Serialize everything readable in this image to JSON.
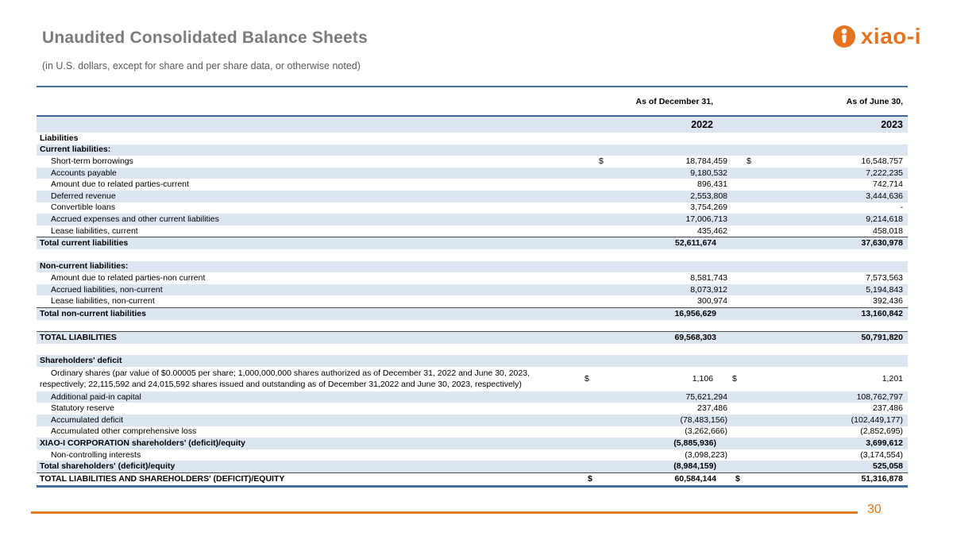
{
  "header": {
    "title": "Unaudited Consolidated Balance Sheets",
    "subtitle": "(in U.S. dollars, except for share and per share data, or otherwise noted)"
  },
  "logo": {
    "brand": "xiao-i",
    "icon": "person-i-icon"
  },
  "colors": {
    "brand_orange": "#E6731E",
    "band_blue": "#DCE6F1",
    "rule_blue": "#44709D",
    "title_gray": "#7B7B7B"
  },
  "table": {
    "col_headers": {
      "col1": "As of December 31,",
      "col2": "As of June 30,"
    },
    "years": {
      "col1": "2022",
      "col2": "2023"
    },
    "rows": [
      {
        "label": "Liabilities",
        "flags": "bold"
      },
      {
        "label": "Current liabilities:",
        "flags": "bold band"
      },
      {
        "label": "Short-term borrowings",
        "d1": "$",
        "v1": "18,784,459",
        "d2": "$",
        "v2": "16,548,757",
        "flags": "indent"
      },
      {
        "label": "Accounts payable",
        "v1": "9,180,532",
        "v2": "7,222,235",
        "flags": "indent band"
      },
      {
        "label": "Amount due to related parties-current",
        "v1": "896,431",
        "v2": "742,714",
        "flags": "indent"
      },
      {
        "label": "Deferred revenue",
        "v1": "2,553,808",
        "v2": "3,444,636",
        "flags": "indent band"
      },
      {
        "label": "Convertible loans",
        "v1": "3,754,269",
        "v2": "-",
        "flags": "indent"
      },
      {
        "label": "Accrued expenses and other current liabilities",
        "v1": "17,006,713",
        "v2": "9,214,618",
        "flags": "indent band"
      },
      {
        "label": "Lease liabilities, current",
        "v1": "435,462",
        "v2": "458,018",
        "flags": "indent"
      },
      {
        "label": "Total current liabilities",
        "v1": "52,611,674",
        "v2": "37,630,978",
        "flags": "bold band top"
      },
      {
        "label": "",
        "flags": "blank"
      },
      {
        "label": "Non-current liabilities:",
        "flags": "bold band"
      },
      {
        "label": "Amount due to related parties-non current",
        "v1": "8,581,743",
        "v2": "7,573,563",
        "flags": "indent"
      },
      {
        "label": "Accrued liabilities, non-current",
        "v1": "8,073,912",
        "v2": "5,194,843",
        "flags": "indent band"
      },
      {
        "label": "Lease liabilities, non-current",
        "v1": "300,974",
        "v2": "392,436",
        "flags": "indent"
      },
      {
        "label": "Total non-current liabilities",
        "v1": "16,956,629",
        "v2": "13,160,842",
        "flags": "bold band top"
      },
      {
        "label": "",
        "flags": "blank"
      },
      {
        "label": "TOTAL LIABILITIES",
        "v1": "69,568,303",
        "v2": "50,791,820",
        "flags": "bold band top"
      },
      {
        "label": "",
        "flags": "blank"
      },
      {
        "label": "Shareholders' deficit",
        "flags": "bold band"
      },
      {
        "label": "Ordinary shares (par value of $0.00005 per share; 1,000,000,000 shares authorized as of December 31, 2022 and June 30, 2023,",
        "label2": "respectively; 22,115,592 and 24,015,592 shares issued and outstanding as of December 31,2022 and June 30, 2023, respectively)",
        "d1": "$",
        "v1": "1,106",
        "d2": "$",
        "v2": "1,201",
        "flags": "tall"
      },
      {
        "label": "Additional paid-in capital",
        "v1": "75,621,294",
        "v2": "108,762,797",
        "flags": "indent band"
      },
      {
        "label": "Statutory reserve",
        "v1": "237,486",
        "v2": "237,486",
        "flags": "indent"
      },
      {
        "label": "Accumulated deficit",
        "v1": "(78,483,156)",
        "v2": "(102,449,177)",
        "flags": "indent band"
      },
      {
        "label": "Accumulated other comprehensive loss",
        "v1": "(3,262,666)",
        "v2": "(2,852,695)",
        "flags": "indent"
      },
      {
        "label": "XIAO-I CORPORATION shareholders' (deficit)/equity",
        "v1": "(5,885,936)",
        "v2": "3,699,612",
        "flags": "bold band"
      },
      {
        "label": "Non-controlling interests",
        "v1": "(3,098,223)",
        "v2": "(3,174,554)",
        "flags": "indent"
      },
      {
        "label": "Total shareholders' (deficit)/equity",
        "v1": "(8,984,159)",
        "v2": "525,058",
        "flags": "bold band"
      },
      {
        "label": "TOTAL LIABILITIES AND SHAREHOLDERS' (DEFICIT)/EQUITY",
        "d1": "$",
        "v1": "60,584,144",
        "d2": "$",
        "v2": "51,316,878",
        "flags": "bold top"
      }
    ]
  },
  "footer": {
    "page_number": "30"
  }
}
